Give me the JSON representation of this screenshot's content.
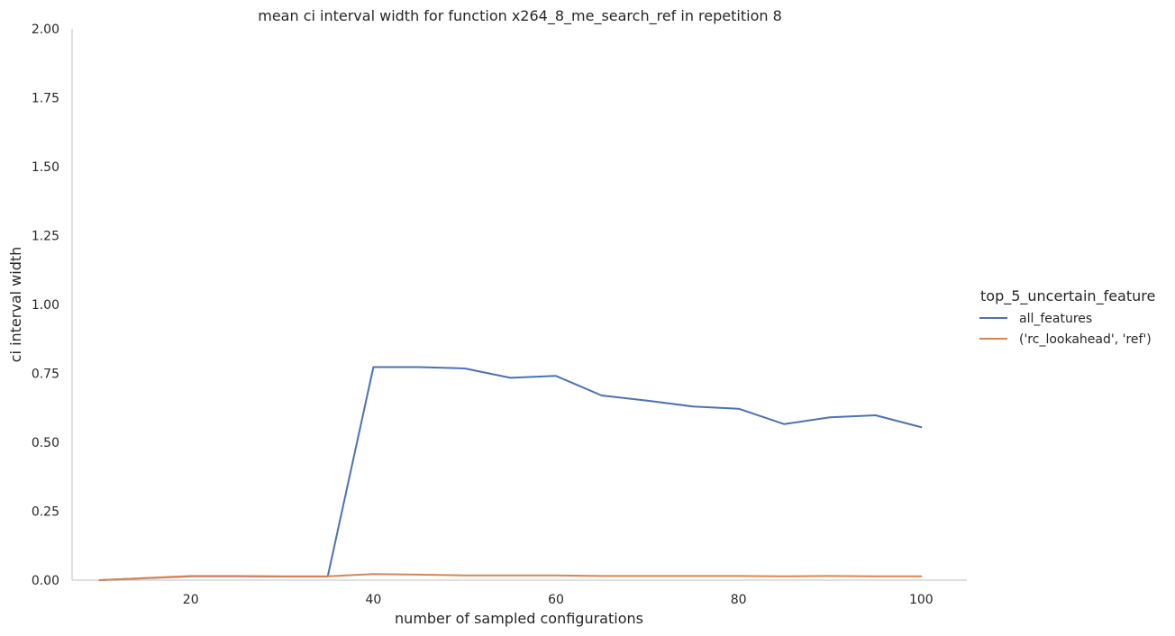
{
  "chart_data": {
    "type": "line",
    "title": "mean ci interval width for function x264_8_me_search_ref in repetition 8",
    "xlabel": "number of sampled configurations",
    "ylabel": "ci interval width",
    "xlim": [
      7,
      105
    ],
    "ylim": [
      0,
      2
    ],
    "xticks": [
      20,
      40,
      60,
      80,
      100
    ],
    "xtick_labels": [
      "20",
      "40",
      "60",
      "80",
      "100"
    ],
    "yticks": [
      0,
      0.25,
      0.5,
      0.75,
      1.0,
      1.25,
      1.5,
      1.75,
      2.0
    ],
    "ytick_labels": [
      "0.00",
      "0.25",
      "0.50",
      "0.75",
      "1.00",
      "1.25",
      "1.50",
      "1.75",
      "2.00"
    ],
    "grid": false,
    "legend": {
      "title": "top_5_uncertain_feature",
      "placement": "right"
    },
    "series": [
      {
        "name": "all_features",
        "color": "#4c72b0",
        "x": [
          10,
          15,
          20,
          25,
          30,
          35,
          40,
          45,
          50,
          55,
          60,
          65,
          70,
          75,
          80,
          85,
          90,
          95,
          100
        ],
        "y": [
          0.0,
          0.007,
          0.014,
          0.014,
          0.013,
          0.013,
          0.773,
          0.773,
          0.768,
          0.734,
          0.741,
          0.67,
          0.651,
          0.63,
          0.622,
          0.566,
          0.591,
          0.598,
          0.555
        ]
      },
      {
        "name": "('rc_lookahead', 'ref')",
        "color": "#dd8452",
        "x": [
          10,
          15,
          20,
          25,
          30,
          35,
          40,
          45,
          50,
          55,
          60,
          65,
          70,
          75,
          80,
          85,
          90,
          95,
          100
        ],
        "y": [
          0.0,
          0.008,
          0.015,
          0.015,
          0.014,
          0.014,
          0.022,
          0.02,
          0.017,
          0.017,
          0.017,
          0.015,
          0.015,
          0.015,
          0.015,
          0.014,
          0.015,
          0.014,
          0.014
        ]
      }
    ]
  }
}
